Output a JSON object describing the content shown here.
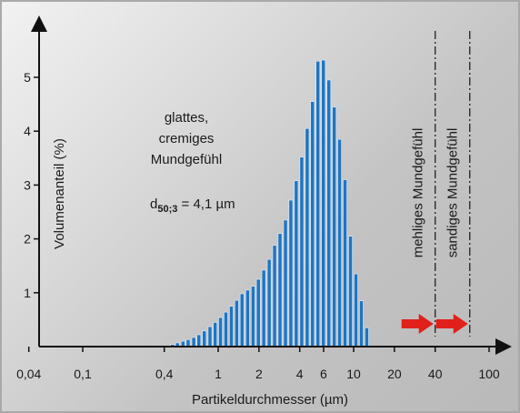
{
  "chart_data": {
    "type": "bar",
    "xlabel": "Partikeldurchmesser (µm)",
    "ylabel": "Volumenanteil (%)",
    "x_scale": "log",
    "xlim": [
      0.025,
      150
    ],
    "ylim": [
      0,
      5.8
    ],
    "x_ticks": [
      {
        "value": 0.04,
        "label": "0,04"
      },
      {
        "value": 0.1,
        "label": "0,1"
      },
      {
        "value": 0.4,
        "label": "0,4"
      },
      {
        "value": 1,
        "label": "1"
      },
      {
        "value": 2,
        "label": "2"
      },
      {
        "value": 4,
        "label": "4"
      },
      {
        "value": 6,
        "label": "6"
      },
      {
        "value": 10,
        "label": "10"
      },
      {
        "value": 20,
        "label": "20"
      },
      {
        "value": 40,
        "label": "40"
      },
      {
        "value": 100,
        "label": "100"
      }
    ],
    "y_ticks": [
      {
        "value": 1,
        "label": "1"
      },
      {
        "value": 2,
        "label": "2"
      },
      {
        "value": 3,
        "label": "3"
      },
      {
        "value": 4,
        "label": "4"
      },
      {
        "value": 5,
        "label": "5"
      }
    ],
    "bar_color": "#1f75c2",
    "x": [
      0.46,
      0.5,
      0.55,
      0.6,
      0.66,
      0.72,
      0.79,
      0.87,
      0.95,
      1.04,
      1.14,
      1.25,
      1.37,
      1.5,
      1.65,
      1.81,
      1.98,
      2.17,
      2.38,
      2.61,
      2.86,
      3.14,
      3.44,
      3.77,
      4.14,
      4.54,
      4.97,
      5.45,
      5.98,
      6.56,
      7.19,
      7.88,
      8.64,
      9.48,
      10.4,
      11.4,
      12.5
    ],
    "values": [
      0.04,
      0.07,
      0.1,
      0.13,
      0.17,
      0.22,
      0.29,
      0.37,
      0.45,
      0.54,
      0.64,
      0.75,
      0.86,
      0.98,
      1.05,
      1.12,
      1.25,
      1.42,
      1.62,
      1.88,
      2.1,
      2.35,
      2.72,
      3.08,
      3.52,
      4.05,
      4.55,
      5.3,
      5.32,
      4.95,
      4.45,
      3.85,
      3.1,
      2.05,
      1.35,
      0.85,
      0.35
    ],
    "annotations": [
      {
        "text_lines": [
          "glattes,",
          "cremiges",
          "Mundgefühl"
        ]
      },
      {
        "text": "d50;3 = 4,1 µm",
        "base": "d",
        "subscript": "50;3",
        "rest": " = 4,1 µm"
      }
    ],
    "reference_lines": [
      {
        "x": 40,
        "label": "mehliges Mundgefühl",
        "style": "dash-dot"
      },
      {
        "x": 72,
        "label": "sandiges Mundgefühl",
        "style": "dash-dot"
      }
    ],
    "arrow_color": "#e0201b"
  }
}
